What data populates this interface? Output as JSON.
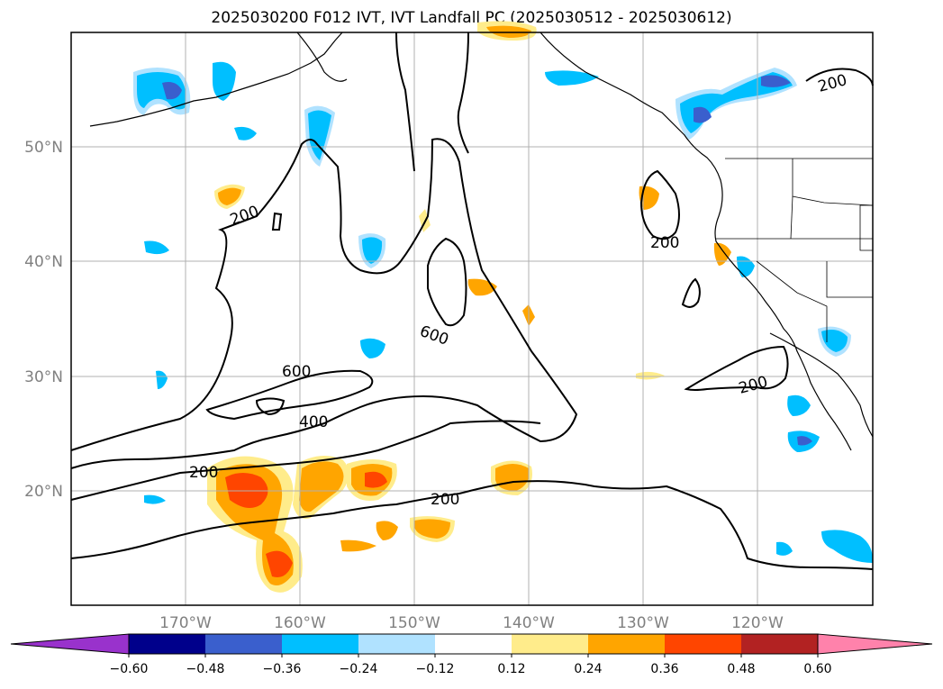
{
  "title": "2025030200 F012 IVT, IVT Landfall PC (2025030512 - 2025030612)",
  "map": {
    "lon_ticks": [
      "170°W",
      "160°W",
      "150°W",
      "140°W",
      "130°W",
      "120°W"
    ],
    "lat_ticks": [
      "50°N",
      "40°N",
      "30°N",
      "20°N"
    ],
    "contour_labels": [
      "200",
      "200",
      "200",
      "200",
      "200",
      "200",
      "400",
      "600",
      "600"
    ],
    "gridlines": true
  },
  "colorbar": {
    "ticks": [
      "−0.60",
      "−0.48",
      "−0.36",
      "−0.24",
      "−0.12",
      "0.12",
      "0.24",
      "0.36",
      "0.48",
      "0.60"
    ],
    "colors": [
      "#9932CC",
      "#00008B",
      "#3A5FCD",
      "#00BFFF",
      "#B0E2FF",
      "#FFFFFF",
      "#FFEC8B",
      "#FFA500",
      "#FF4500",
      "#B22222",
      "#FF82AB"
    ],
    "extend": "both"
  },
  "chart_data": {
    "type": "heatmap",
    "title": "2025030200 F012 IVT, IVT Landfall PC (2025030512 - 2025030612)",
    "x_range": [
      "180°W",
      "110°W"
    ],
    "y_range": [
      "10°N",
      "60°N"
    ],
    "contour_levels": [
      200,
      400,
      600
    ],
    "color_levels": [
      -0.6,
      -0.48,
      -0.36,
      -0.24,
      -0.12,
      0.12,
      0.24,
      0.36,
      0.48,
      0.6
    ]
  }
}
